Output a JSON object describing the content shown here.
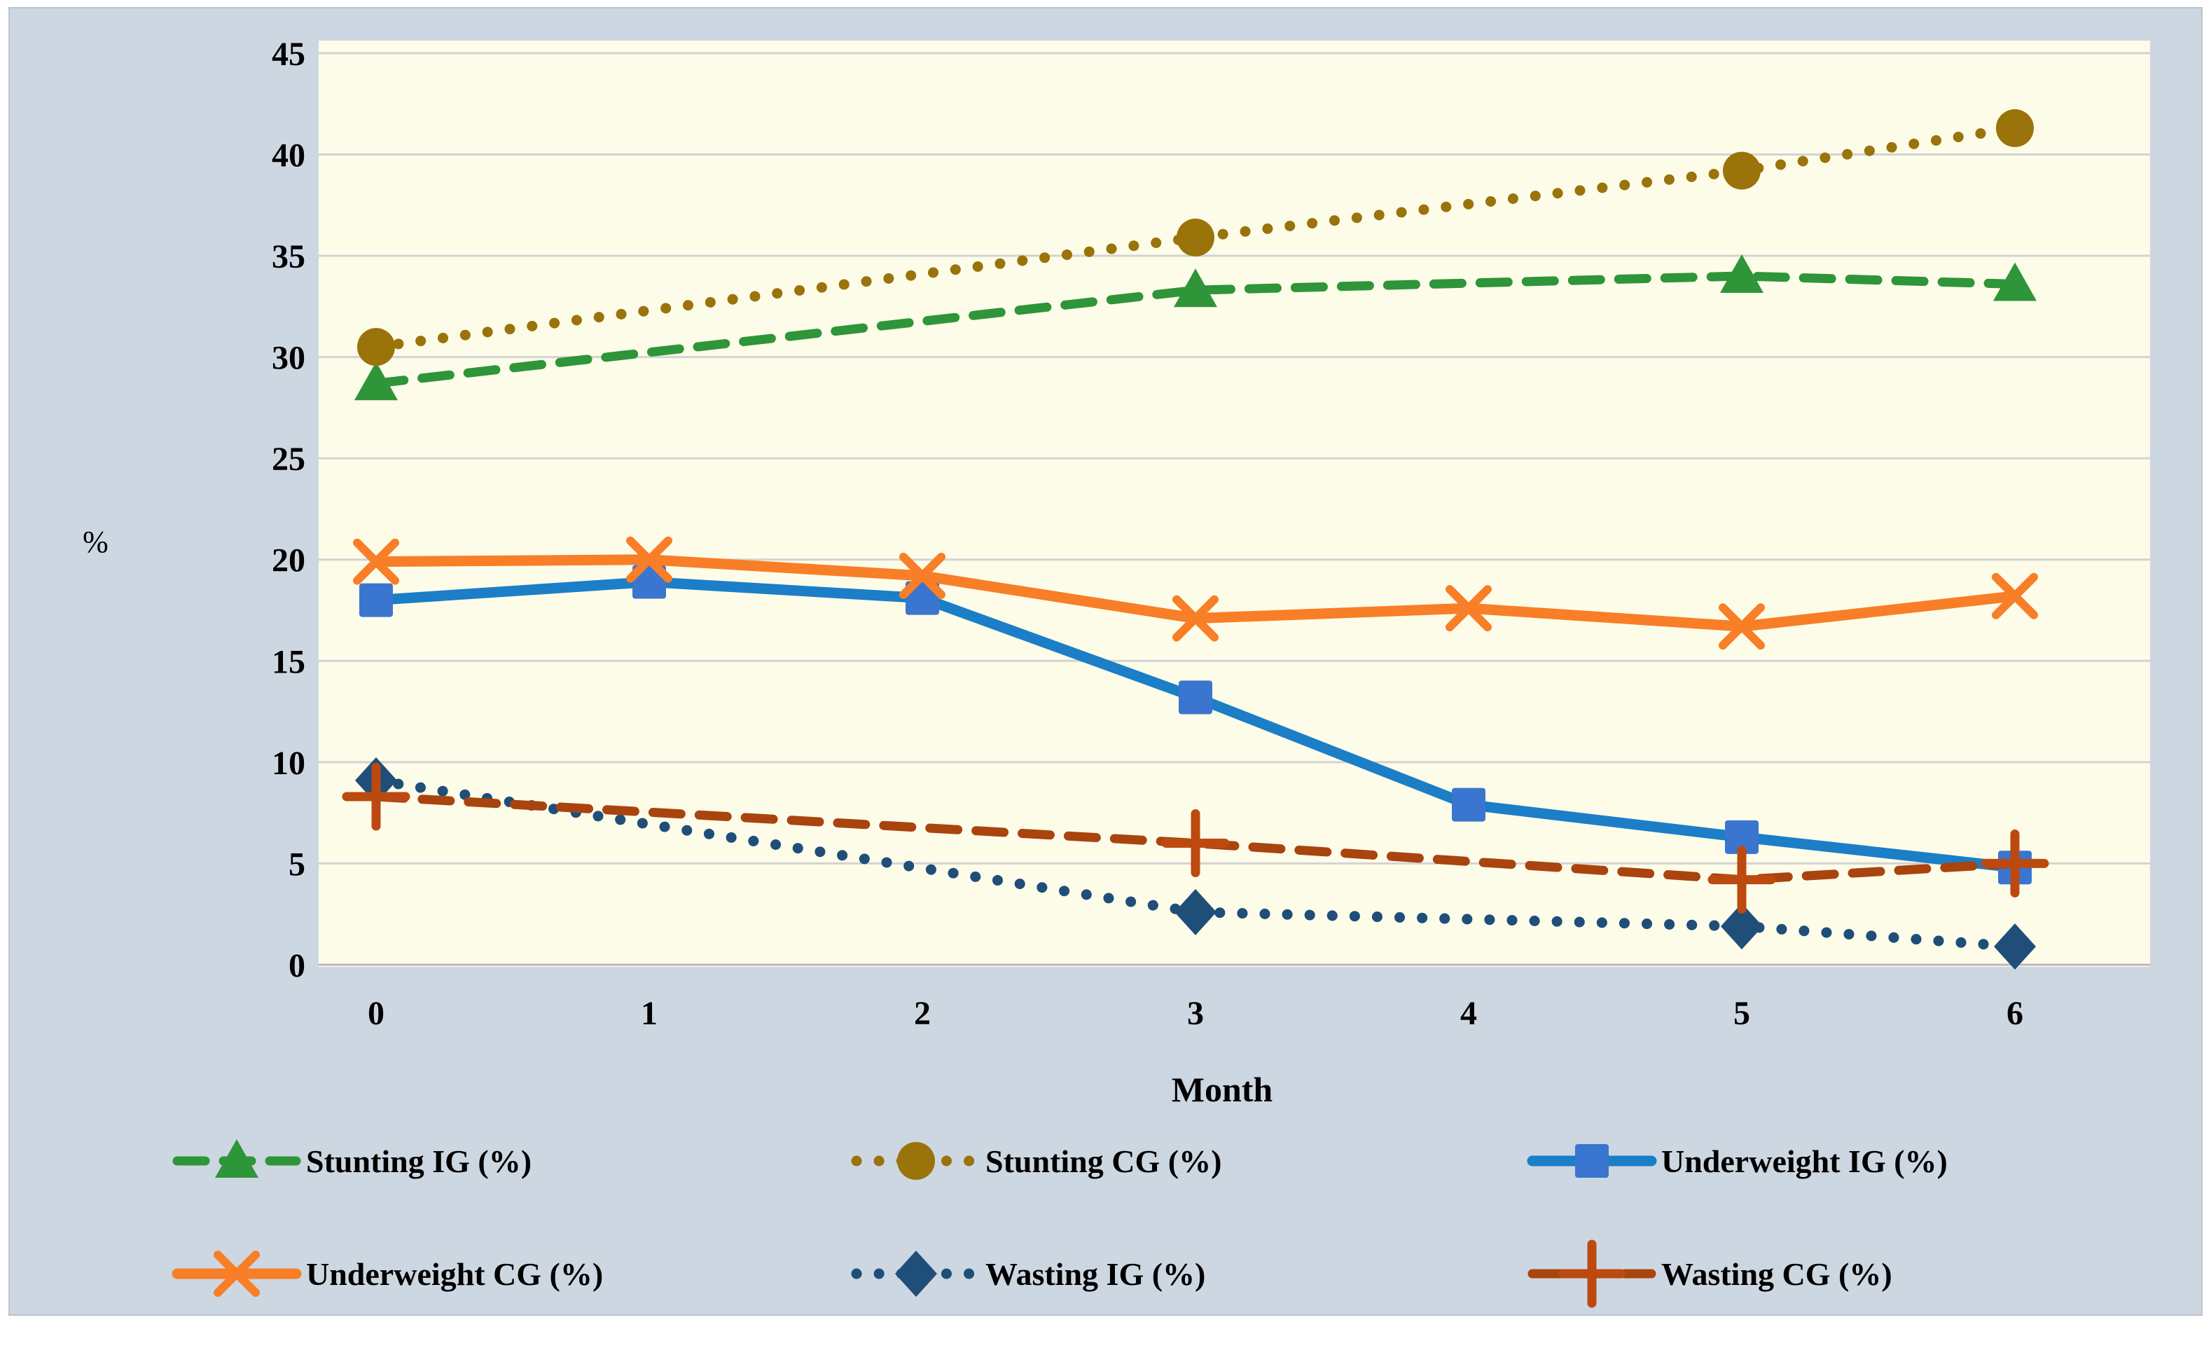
{
  "chart_data": {
    "type": "line",
    "title": "",
    "xlabel": "Month",
    "ylabel": "%",
    "x": [
      0,
      1,
      2,
      3,
      4,
      5,
      6
    ],
    "xticks": [
      "0",
      "1",
      "2",
      "3",
      "4",
      "5",
      "6"
    ],
    "yticks": [
      "0",
      "5",
      "10",
      "15",
      "20",
      "25",
      "30",
      "35",
      "40",
      "45"
    ],
    "ylim": [
      0,
      45
    ],
    "ytick_step": 5,
    "grid": true,
    "legend_position": "bottom",
    "plot_bg_color": "#fdfce9",
    "outer_bg_color": "#cdd7e2",
    "gridline_color": "#d3d3d3",
    "axisline_color": "#b9b9b9",
    "series": [
      {
        "name": "Stunting IG (%)",
        "color": "#2e9539",
        "line": "dashed",
        "marker": "triangle",
        "values": [
          28.7,
          null,
          null,
          33.3,
          null,
          34.0,
          33.6
        ]
      },
      {
        "name": "Stunting CG (%)",
        "color": "#9a730a",
        "line": "dotted",
        "marker": "circle",
        "values": [
          30.5,
          null,
          null,
          35.9,
          null,
          39.2,
          41.3
        ]
      },
      {
        "name": "Underweight IG (%)",
        "color": "#1b7ec6",
        "marker_color": "#3a75d0",
        "line": "solid",
        "marker": "square",
        "values": [
          18.0,
          18.9,
          18.1,
          13.2,
          7.9,
          6.3,
          4.8
        ]
      },
      {
        "name": "Underweight CG (%)",
        "color": "#f87e27",
        "line": "solid",
        "marker": "x",
        "values": [
          19.9,
          20.0,
          19.2,
          17.1,
          17.6,
          16.7,
          18.2
        ]
      },
      {
        "name": "Wasting IG (%)",
        "color": "#1f4e79",
        "line": "dotted",
        "marker": "diamond",
        "values": [
          9.1,
          null,
          null,
          2.6,
          null,
          1.9,
          0.9
        ]
      },
      {
        "name": "Wasting CG (%)",
        "color": "#a9440e",
        "marker_color": "#bc4a10",
        "line": "dashed",
        "marker": "plus",
        "values": [
          8.3,
          null,
          null,
          6.0,
          null,
          4.2,
          5.0
        ]
      }
    ]
  }
}
